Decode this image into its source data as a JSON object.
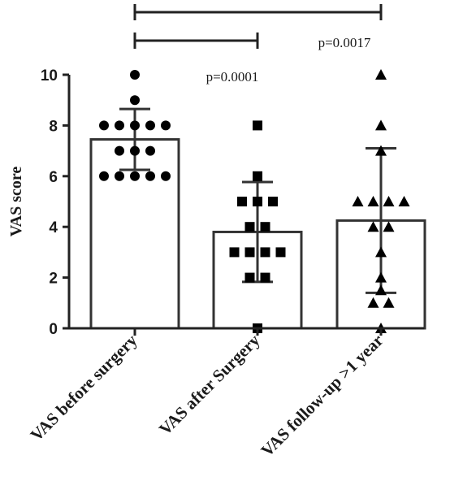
{
  "chart_data": {
    "type": "bar",
    "ylabel": "VAS score",
    "ylim": [
      0,
      10
    ],
    "yticks": [
      "0",
      "2",
      "4",
      "6",
      "8",
      "10"
    ],
    "categories": [
      "VAS before surgery",
      "VAS after Surgery",
      "VAS follow-up >1 year"
    ],
    "means": [
      7.45,
      3.8,
      4.25
    ],
    "sd": [
      1.2,
      1.97,
      2.85
    ],
    "marker_shapes": [
      "circle",
      "square",
      "triangle"
    ],
    "points": [
      [
        10,
        9,
        8,
        8,
        8,
        8,
        8,
        7,
        7,
        7,
        6,
        6,
        6,
        6,
        6
      ],
      [
        8,
        6,
        5,
        5,
        5,
        4,
        4,
        3,
        3,
        3,
        3,
        2,
        2,
        0
      ],
      [
        10,
        8,
        7,
        5,
        5,
        5,
        5,
        4,
        4,
        3,
        2,
        1.5,
        1,
        1,
        0
      ]
    ],
    "comparisons": [
      {
        "from": 0,
        "to": 1,
        "label": "p=0.0001"
      },
      {
        "from": 0,
        "to": 2,
        "label": "p=0.0017"
      }
    ]
  }
}
